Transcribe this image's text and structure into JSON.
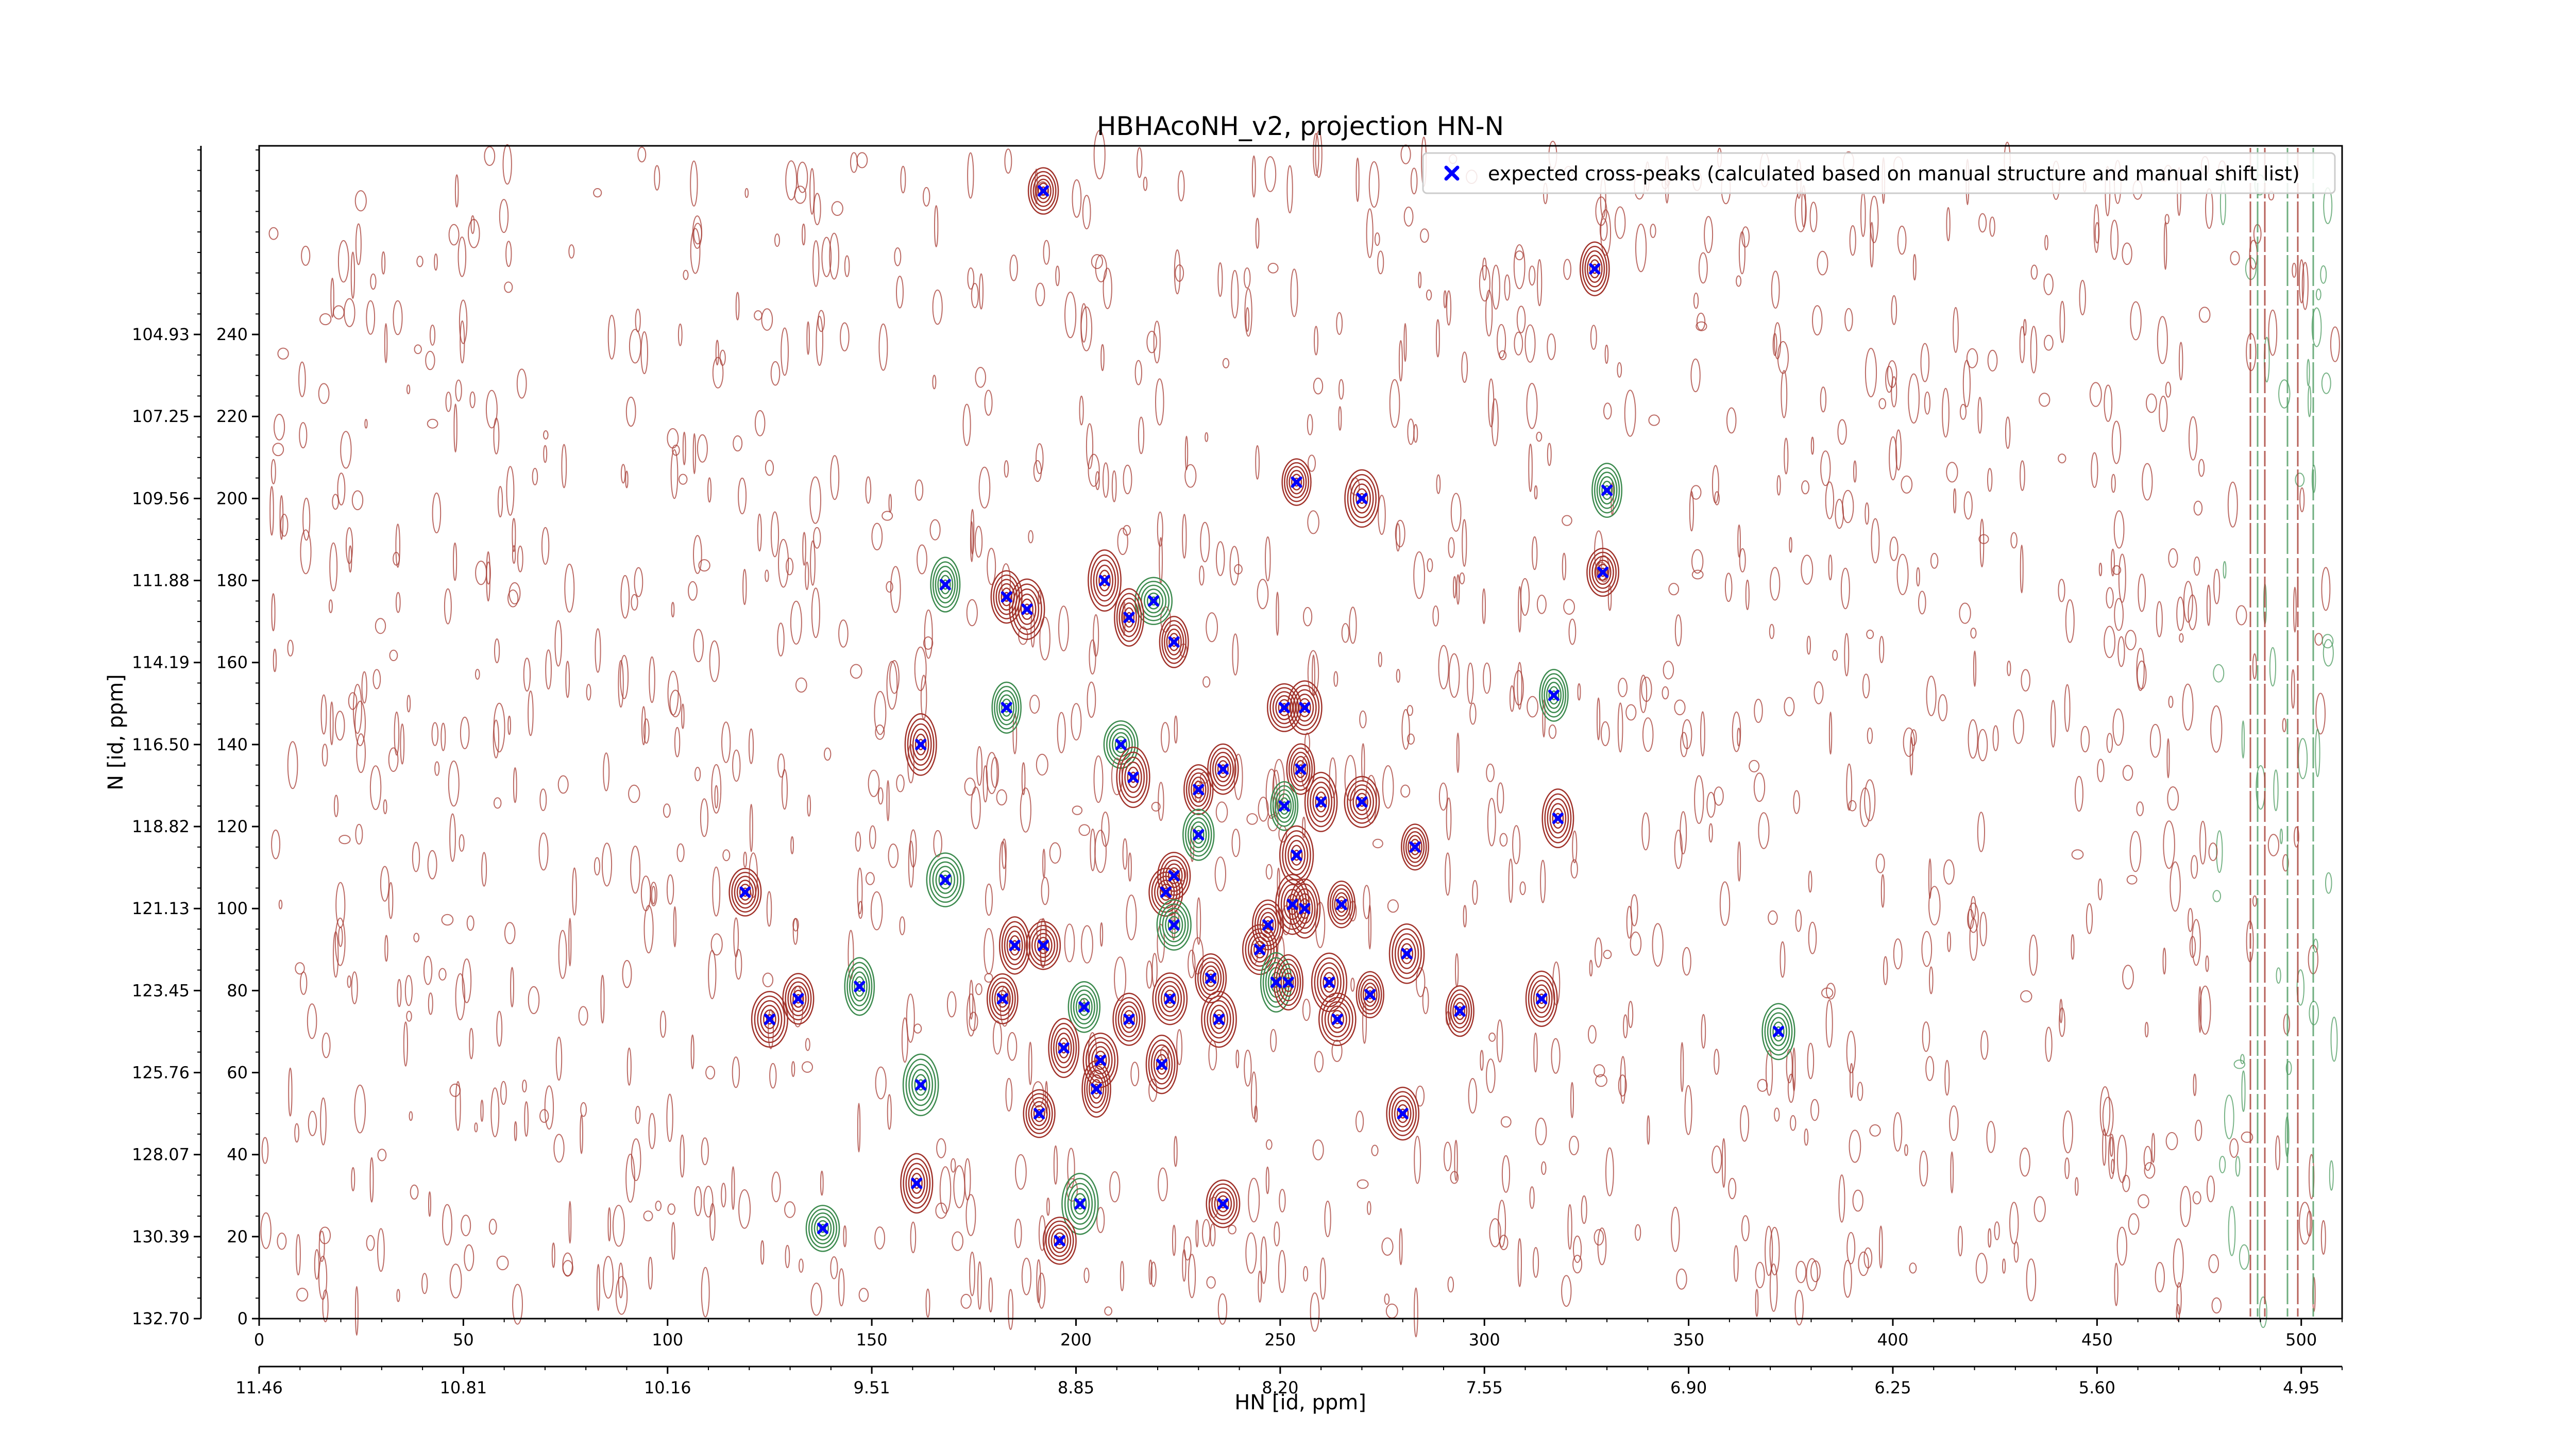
{
  "chart_data": {
    "type": "scatter",
    "title": "HBHAcoNH_v2, projection HN-N",
    "xlabel": "HN [id, ppm]",
    "ylabel": "N [id, ppm]",
    "x_index_range": [
      0,
      510
    ],
    "y_index_range": [
      0,
      286
    ],
    "x_index_ticks": [
      "0",
      "50",
      "100",
      "150",
      "200",
      "250",
      "300",
      "350",
      "400",
      "450",
      "500"
    ],
    "y_index_ticks": [
      "0",
      "20",
      "40",
      "60",
      "80",
      "100",
      "120",
      "140",
      "160",
      "180",
      "200",
      "220",
      "240"
    ],
    "x_ppm_ticks": [
      "11.46",
      "10.81",
      "10.16",
      "9.51",
      "8.85",
      "8.20",
      "7.55",
      "6.90",
      "6.25",
      "5.60",
      "4.95"
    ],
    "y_ppm_ticks": [
      "132.70",
      "130.39",
      "128.07",
      "125.76",
      "123.45",
      "121.13",
      "118.82",
      "116.50",
      "114.19",
      "111.88",
      "109.56",
      "107.25",
      "104.93"
    ],
    "grid": false,
    "legend_position": "top-right",
    "series": [
      {
        "name": "expected cross-peaks (calculated based on manual structure and manual shift list)",
        "color": "#0000ff",
        "marker": "x",
        "x": [
          192,
          327,
          254,
          270,
          330,
          168,
          183,
          188,
          207,
          219,
          213,
          224,
          329,
          183,
          251,
          256,
          317,
          162,
          211,
          236,
          255,
          214,
          230,
          260,
          270,
          251,
          318,
          230,
          283,
          254,
          224,
          168,
          222,
          253,
          256,
          247,
          265,
          119,
          185,
          192,
          224,
          245,
          281,
          147,
          233,
          249,
          252,
          262,
          272,
          132,
          182,
          223,
          294,
          314,
          213,
          202,
          264,
          125,
          197,
          235,
          206,
          372,
          221,
          162,
          205,
          191,
          280,
          161,
          201,
          138,
          236,
          196
        ],
        "y": [
          275,
          256,
          204,
          200,
          202,
          179,
          176,
          173,
          180,
          175,
          171,
          165,
          182,
          149,
          149,
          149,
          152,
          140,
          140,
          134,
          134,
          132,
          129,
          126,
          126,
          125,
          122,
          118,
          115,
          113,
          108,
          107,
          104,
          101,
          100,
          96,
          101,
          104,
          91,
          91,
          96,
          90,
          89,
          81,
          83,
          82,
          82,
          82,
          79,
          78,
          78,
          78,
          75,
          78,
          73,
          76,
          73,
          73,
          66,
          73,
          63,
          70,
          62,
          57,
          56,
          50,
          50,
          33,
          28,
          22,
          28,
          19
        ]
      }
    ]
  }
}
